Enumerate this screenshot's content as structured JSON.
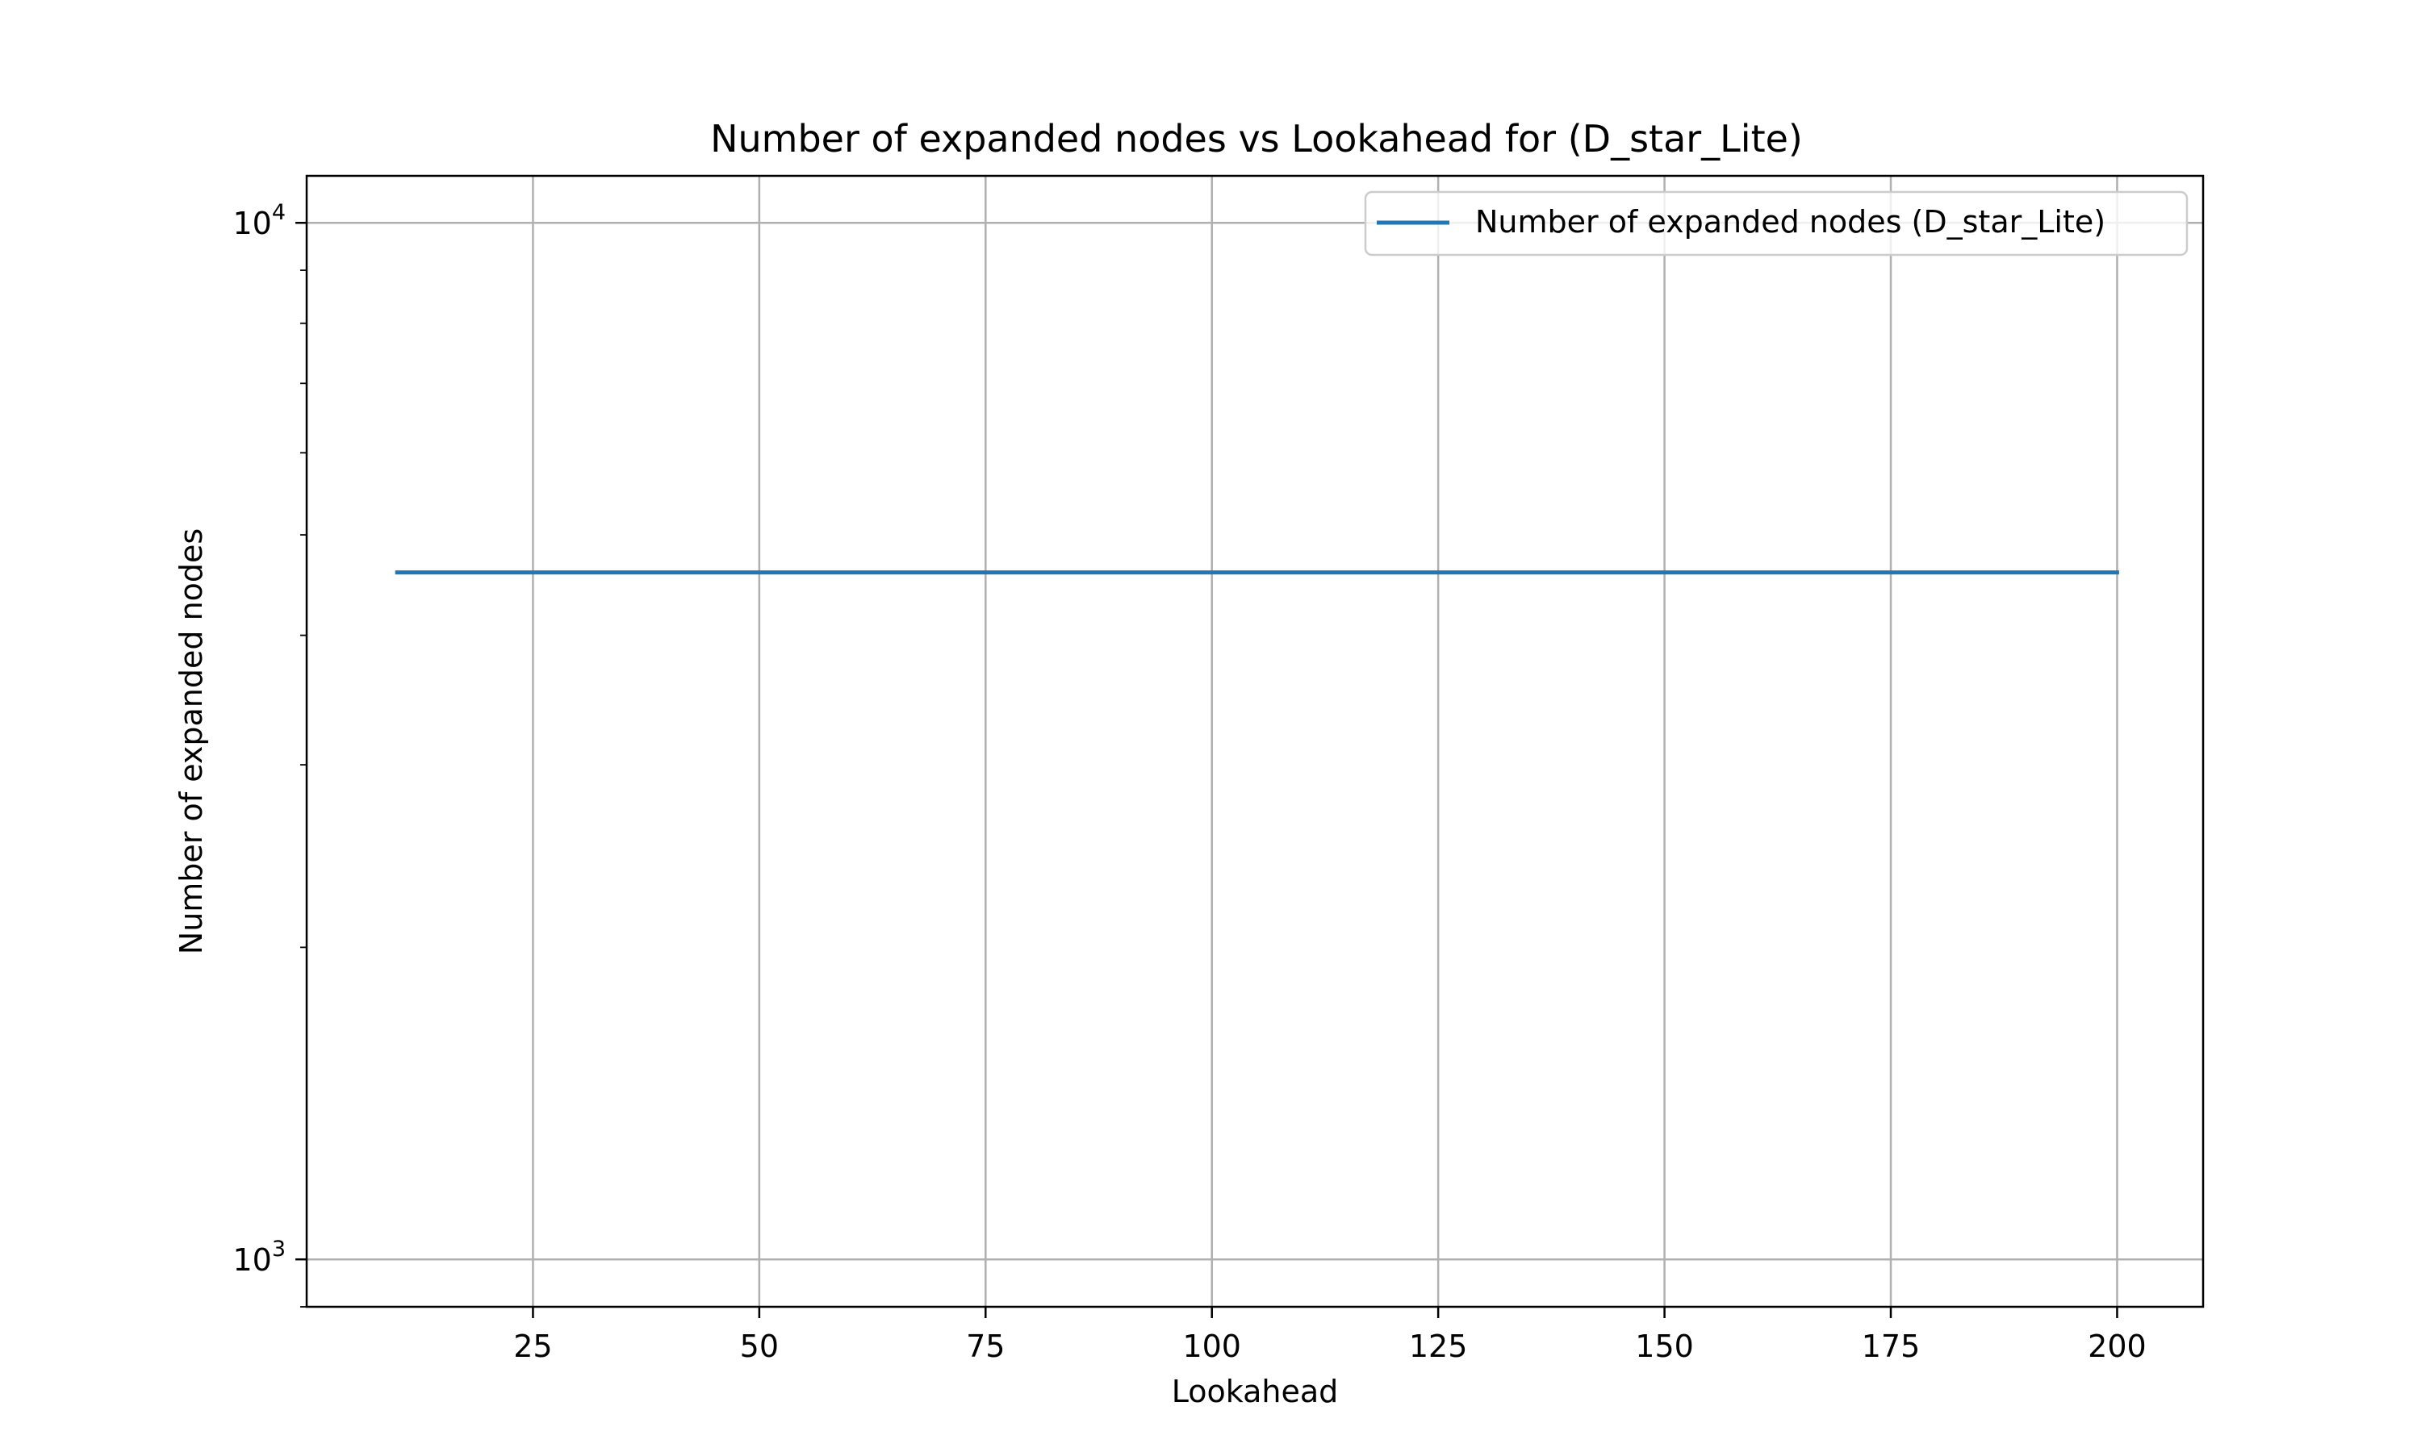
{
  "chart_data": {
    "type": "line",
    "title": "Number of expanded nodes vs Lookahead for  (D_star_Lite)",
    "xlabel": "Lookahead",
    "ylabel": "Number of expanded nodes",
    "xlim": [
      0,
      209.5
    ],
    "ylim": [
      900,
      11100
    ],
    "yscale": "log",
    "grid": true,
    "legend_position": "upper right",
    "x_ticks": [
      {
        "value": 25,
        "label": "25"
      },
      {
        "value": 50,
        "label": "50"
      },
      {
        "value": 75,
        "label": "75"
      },
      {
        "value": 100,
        "label": "100"
      },
      {
        "value": 125,
        "label": "125"
      },
      {
        "value": 150,
        "label": "150"
      },
      {
        "value": 175,
        "label": "175"
      },
      {
        "value": 200,
        "label": "200"
      }
    ],
    "y_ticks": [
      {
        "value": 1000,
        "base": "10",
        "exponent": "3"
      },
      {
        "value": 10000,
        "base": "10",
        "exponent": "4"
      }
    ],
    "y_minor_ticks": [
      900,
      2000,
      3000,
      4000,
      5000,
      6000,
      7000,
      8000,
      9000
    ],
    "series": [
      {
        "name": "Number of expanded nodes (D_star_Lite)",
        "color": "#1f77b4",
        "x": [
          10,
          200
        ],
        "y": [
          4600,
          4600
        ]
      }
    ]
  }
}
